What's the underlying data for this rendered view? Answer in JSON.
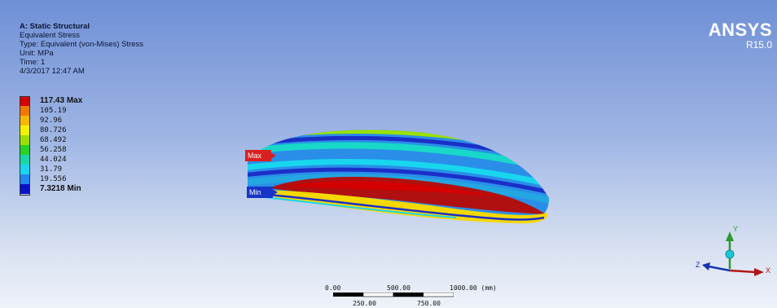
{
  "info": {
    "title": "A: Static Structural",
    "result": "Equivalent Stress",
    "type": "Type: Equivalent (von-Mises) Stress",
    "unit": "Unit: MPa",
    "time": "Time: 1",
    "date": "4/3/2017 12:47 AM"
  },
  "legend": [
    {
      "label": "117.43 Max",
      "color": "#d40000",
      "bold": true
    },
    {
      "label": "105.19",
      "color": "#f07800",
      "bold": false
    },
    {
      "label": "92.96",
      "color": "#f5b800",
      "bold": false
    },
    {
      "label": "80.726",
      "color": "#f2f200",
      "bold": false
    },
    {
      "label": "68.492",
      "color": "#9be000",
      "bold": false
    },
    {
      "label": "56.258",
      "color": "#28d228",
      "bold": false
    },
    {
      "label": "44.024",
      "color": "#18d8a8",
      "bold": false
    },
    {
      "label": "31.79",
      "color": "#18d6ee",
      "bold": false
    },
    {
      "label": "19.556",
      "color": "#2288f0",
      "bold": false
    },
    {
      "label": "7.3218 Min",
      "color": "#0a12c8",
      "bold": true
    }
  ],
  "brand": {
    "name": "ANSYS",
    "release": "R15.0"
  },
  "probes": {
    "max": "Max",
    "min": "Min"
  },
  "scale": {
    "top": [
      "0.00",
      "500.00",
      "1000.00 (mm)"
    ],
    "bottom": [
      "250.00",
      "750.00"
    ]
  },
  "triad": {
    "y": "Y",
    "z": "Z",
    "x": "X"
  }
}
